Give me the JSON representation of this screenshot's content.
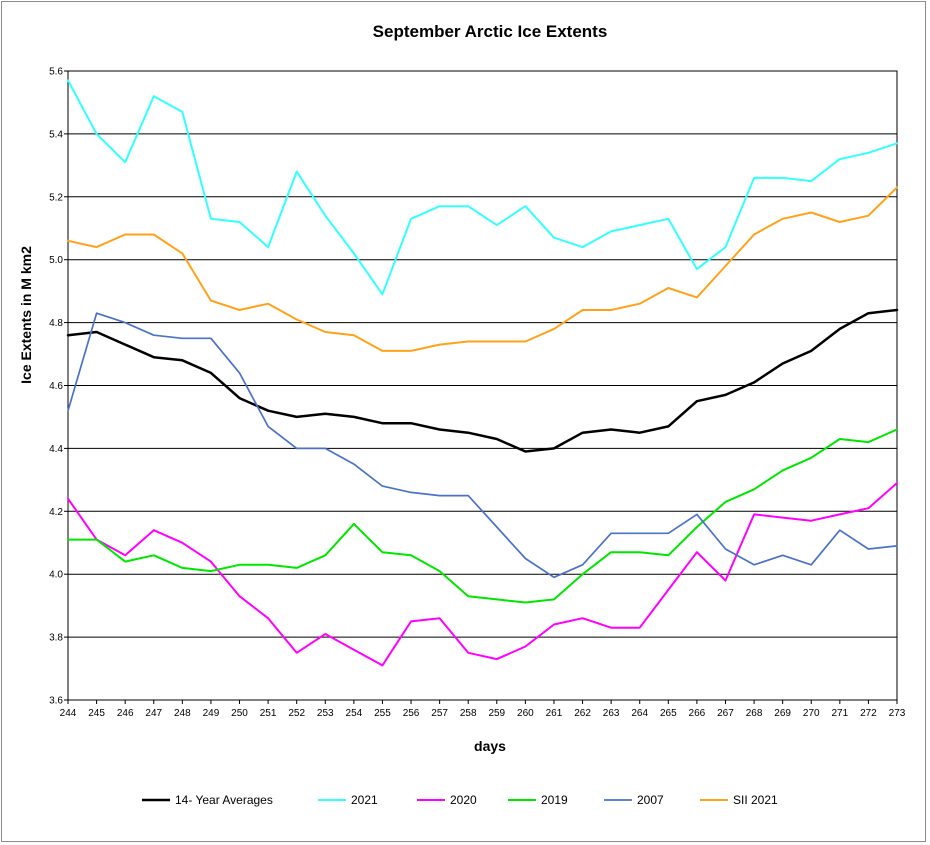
{
  "chart_data": {
    "type": "line",
    "title": "September Arctic Ice Extents",
    "xlabel": "days",
    "ylabel": "Ice Extents in M km2",
    "ylim": [
      3.6,
      5.6
    ],
    "yticks": [
      "3.6",
      "3.8",
      "4.0",
      "4.2",
      "4.4",
      "4.6",
      "4.8",
      "5.0",
      "5.2",
      "5.4",
      "5.6"
    ],
    "ytick_values": [
      3.6,
      3.8,
      4.0,
      4.2,
      4.4,
      4.6,
      4.8,
      5.0,
      5.2,
      5.4,
      5.6
    ],
    "grid": true,
    "legend_position": "bottom",
    "x": [
      "244",
      "245",
      "246",
      "247",
      "248",
      "249",
      "250",
      "251",
      "252",
      "253",
      "254",
      "255",
      "256",
      "257",
      "258",
      "259",
      "260",
      "261",
      "262",
      "263",
      "264",
      "265",
      "266",
      "267",
      "268",
      "269",
      "270",
      "271",
      "272",
      "273"
    ],
    "series": [
      {
        "name": "14- Year Averages",
        "color": "#000000",
        "width": 2.5,
        "values": [
          4.76,
          4.77,
          4.73,
          4.69,
          4.68,
          4.64,
          4.56,
          4.52,
          4.5,
          4.51,
          4.5,
          4.48,
          4.48,
          4.46,
          4.45,
          4.43,
          4.39,
          4.4,
          4.45,
          4.46,
          4.45,
          4.47,
          4.55,
          4.57,
          4.61,
          4.67,
          4.71,
          4.78,
          4.83,
          4.84
        ]
      },
      {
        "name": "2021",
        "color": "#33ffff",
        "width": 2,
        "values": [
          5.57,
          5.4,
          5.31,
          5.52,
          5.47,
          5.13,
          5.12,
          5.04,
          5.28,
          5.14,
          5.02,
          4.89,
          5.13,
          5.17,
          5.17,
          5.11,
          5.17,
          5.07,
          5.04,
          5.09,
          5.11,
          5.13,
          4.97,
          5.04,
          5.26,
          5.26,
          5.25,
          5.32,
          5.34,
          5.37
        ]
      },
      {
        "name": "2020",
        "color": "#ff00ff",
        "width": 2,
        "values": [
          4.24,
          4.11,
          4.06,
          4.14,
          4.1,
          4.04,
          3.93,
          3.86,
          3.75,
          3.81,
          3.76,
          3.71,
          3.85,
          3.86,
          3.75,
          3.73,
          3.77,
          3.84,
          3.86,
          3.83,
          3.83,
          3.95,
          4.07,
          3.98,
          4.19,
          4.18,
          4.17,
          4.19,
          4.21,
          4.29
        ]
      },
      {
        "name": "2019",
        "color": "#00e600",
        "width": 2,
        "values": [
          4.11,
          4.11,
          4.04,
          4.06,
          4.02,
          4.01,
          4.03,
          4.03,
          4.02,
          4.06,
          4.16,
          4.07,
          4.06,
          4.01,
          3.93,
          3.92,
          3.91,
          3.92,
          4.0,
          4.07,
          4.07,
          4.06,
          4.15,
          4.23,
          4.27,
          4.33,
          4.37,
          4.43,
          4.42,
          4.46
        ]
      },
      {
        "name": "2007",
        "color": "#4a72c8",
        "width": 1.7,
        "values": [
          4.52,
          4.83,
          4.8,
          4.76,
          4.75,
          4.75,
          4.64,
          4.47,
          4.4,
          4.4,
          4.35,
          4.28,
          4.26,
          4.25,
          4.25,
          4.15,
          4.05,
          3.99,
          4.03,
          4.13,
          4.13,
          4.13,
          4.19,
          4.08,
          4.03,
          4.06,
          4.03,
          4.14,
          4.08,
          4.09
        ]
      },
      {
        "name": "SII 2021",
        "color": "#ffa21a",
        "width": 2,
        "values": [
          5.06,
          5.04,
          5.08,
          5.08,
          5.02,
          4.87,
          4.84,
          4.86,
          4.81,
          4.77,
          4.76,
          4.71,
          4.71,
          4.73,
          4.74,
          4.74,
          4.74,
          4.78,
          4.84,
          4.84,
          4.86,
          4.91,
          4.88,
          4.98,
          5.08,
          5.13,
          5.15,
          5.12,
          5.14,
          5.23
        ]
      }
    ]
  }
}
